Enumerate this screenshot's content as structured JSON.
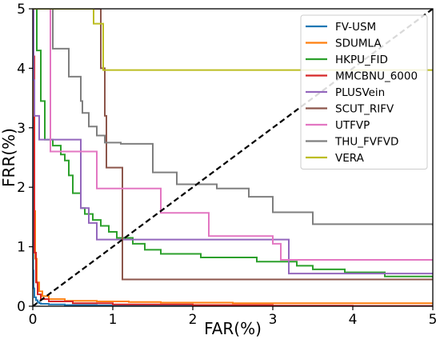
{
  "chart_data": {
    "type": "line",
    "title": "",
    "xlabel": "FAR(%)",
    "ylabel": "FRR(%)",
    "xlim": [
      0,
      5
    ],
    "ylim": [
      0,
      5
    ],
    "xticks": [
      "0",
      "1",
      "2",
      "3",
      "4",
      "5"
    ],
    "yticks": [
      "0",
      "1",
      "2",
      "3",
      "4",
      "5"
    ],
    "grid": false,
    "legend_position": "top-right",
    "series": [
      {
        "name": "FV-USM",
        "color": "#1f77b4",
        "dashed": false,
        "x": [
          0,
          0.003,
          0.005,
          0.01,
          0.02,
          0.04,
          0.06,
          0.08,
          0.1,
          0.2,
          0.4,
          0.8,
          1.2,
          2,
          3,
          4,
          5
        ],
        "y": [
          5,
          2.5,
          0.6,
          0.3,
          0.15,
          0.1,
          0.07,
          0.05,
          0.04,
          0.03,
          0.02,
          0.015,
          0.01,
          0.008,
          0.005,
          0.003,
          0.002
        ]
      },
      {
        "name": "SDUMLA",
        "color": "#ff7f0e",
        "dashed": false,
        "x": [
          0,
          0.01,
          0.02,
          0.03,
          0.05,
          0.08,
          0.12,
          0.2,
          0.4,
          0.8,
          1.2,
          1.6,
          2.5,
          3.5,
          5
        ],
        "y": [
          5,
          3.2,
          1.6,
          0.8,
          0.4,
          0.25,
          0.17,
          0.12,
          0.09,
          0.08,
          0.07,
          0.06,
          0.05,
          0.05,
          0.05
        ]
      },
      {
        "name": "HKPU_FID",
        "color": "#2ca02c",
        "dashed": false,
        "x": [
          0,
          0.05,
          0.1,
          0.15,
          0.25,
          0.35,
          0.4,
          0.45,
          0.5,
          0.6,
          0.65,
          0.75,
          0.85,
          0.95,
          1.05,
          1.25,
          1.4,
          1.6,
          2.1,
          2.8,
          3.3,
          3.5,
          3.9,
          4.4,
          5
        ],
        "y": [
          5,
          4.3,
          3.45,
          2.8,
          2.7,
          2.55,
          2.45,
          2.2,
          1.9,
          1.65,
          1.55,
          1.45,
          1.35,
          1.25,
          1.15,
          1.05,
          0.95,
          0.88,
          0.82,
          0.75,
          0.68,
          0.62,
          0.57,
          0.5,
          0.48
        ]
      },
      {
        "name": "MMCBNU_6000",
        "color": "#d62728",
        "dashed": false,
        "x": [
          0,
          0.01,
          0.02,
          0.04,
          0.06,
          0.1,
          0.2,
          0.5,
          1,
          2,
          3,
          4,
          5
        ],
        "y": [
          5,
          4.2,
          0.9,
          0.4,
          0.2,
          0.12,
          0.08,
          0.05,
          0.03,
          0.02,
          0.01,
          0.005,
          0.002
        ]
      },
      {
        "name": "PLUSVein",
        "color": "#9467bd",
        "dashed": false,
        "x": [
          0,
          0.01,
          0.02,
          0.08,
          0.1,
          0.15,
          0.2,
          0.3,
          0.4,
          0.6,
          0.7,
          0.8,
          1.0,
          2.0,
          3.0,
          3.2,
          3.5,
          4.0,
          4.5,
          5
        ],
        "y": [
          5,
          3.8,
          3.2,
          2.8,
          2.8,
          2.8,
          2.8,
          2.8,
          2.8,
          1.65,
          1.4,
          1.12,
          1.12,
          1.12,
          1.12,
          0.55,
          0.55,
          0.55,
          0.55,
          0.55
        ]
      },
      {
        "name": "SCUT_RIFV",
        "color": "#8c564b",
        "dashed": false,
        "x": [
          0,
          0.85,
          0.85,
          0.9,
          0.92,
          1.05,
          1.12,
          1.12,
          1.5,
          2.0,
          3.0,
          4.0,
          5
        ],
        "y": [
          5,
          5,
          4.0,
          3.2,
          2.33,
          2.33,
          2.33,
          0.45,
          0.45,
          0.45,
          0.45,
          0.45,
          0.45
        ]
      },
      {
        "name": "UTFVP",
        "color": "#e377c2",
        "dashed": false,
        "x": [
          0,
          0.02,
          0.1,
          0.2,
          0.22,
          0.5,
          0.75,
          0.8,
          1.0,
          1.2,
          1.6,
          1.6,
          2.2,
          3.0,
          3.1,
          3.3,
          4.0,
          5
        ],
        "y": [
          5,
          5,
          5,
          5,
          2.6,
          2.6,
          2.6,
          1.98,
          1.98,
          1.98,
          1.98,
          1.57,
          1.18,
          1.05,
          0.78,
          0.78,
          0.78,
          0.78
        ]
      },
      {
        "name": "THU_FVFVD",
        "color": "#7f7f7f",
        "dashed": false,
        "x": [
          0,
          0.22,
          0.25,
          0.4,
          0.45,
          0.55,
          0.6,
          0.62,
          0.7,
          0.8,
          0.9,
          1.0,
          1.1,
          1.3,
          1.5,
          1.8,
          2.3,
          2.7,
          3.0,
          3.5,
          5
        ],
        "y": [
          5,
          5,
          4.33,
          4.33,
          3.86,
          3.86,
          3.45,
          3.25,
          3.02,
          2.87,
          2.75,
          2.75,
          2.73,
          2.73,
          2.25,
          2.05,
          1.98,
          1.84,
          1.58,
          1.38,
          1.36
        ]
      },
      {
        "name": "VERA",
        "color": "#bcbd22",
        "dashed": false,
        "x": [
          0,
          0.75,
          0.76,
          0.8,
          0.85,
          0.88,
          1.0,
          2.0,
          3.0,
          4.0,
          5
        ],
        "y": [
          5,
          5,
          4.75,
          4.75,
          4.75,
          3.97,
          3.97,
          3.97,
          3.97,
          3.97,
          3.97
        ]
      },
      {
        "name": "",
        "color": "#000000",
        "dashed": true,
        "x": [
          0,
          5
        ],
        "y": [
          0,
          5
        ]
      },
      {
        "name": "",
        "color": "#c8c8c8",
        "dashed": true,
        "x": [
          0,
          5
        ],
        "y": [
          0,
          5
        ]
      }
    ]
  }
}
